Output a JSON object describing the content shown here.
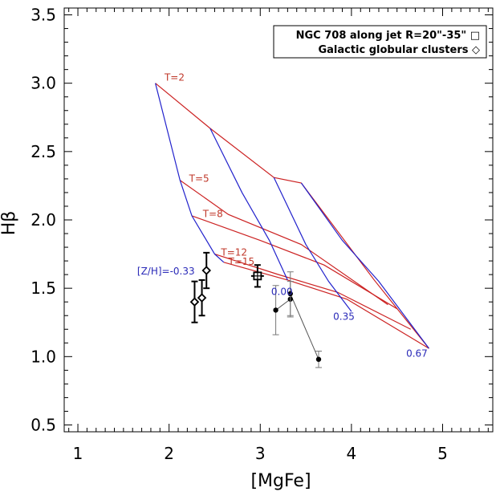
{
  "chart_data": {
    "type": "scatter",
    "xlabel": "[MgFe]",
    "ylabel": "Hβ",
    "xlim": [
      0.85,
      5.55
    ],
    "ylim": [
      0.45,
      3.55
    ],
    "x_ticks": [
      1,
      2,
      3,
      4,
      5
    ],
    "x_tick_labels": [
      "1",
      "2",
      "3",
      "4",
      "5"
    ],
    "y_ticks": [
      0.5,
      1.0,
      1.5,
      2.0,
      2.5,
      3.0,
      3.5
    ],
    "y_tick_labels": [
      "0.5",
      "1.0",
      "1.5",
      "2.0",
      "2.5",
      "3.0",
      "3.5"
    ],
    "legend": {
      "placement": "top-right",
      "entries": [
        {
          "text": "NGC 708 along jet R=20\"-35\" □"
        },
        {
          "text": "Galactic globular clusters ◇"
        }
      ]
    },
    "model_grid": {
      "age_lines": [
        {
          "label": "T=2",
          "color": "#cc2222",
          "points": [
            [
              1.85,
              3.0
            ],
            [
              2.45,
              2.67
            ],
            [
              3.15,
              2.31
            ],
            [
              3.45,
              2.27
            ],
            [
              4.25,
              1.56
            ],
            [
              4.85,
              1.06
            ]
          ]
        },
        {
          "label": "T=5",
          "color": "#cc2222",
          "points": [
            [
              2.12,
              2.29
            ],
            [
              2.65,
              2.04
            ],
            [
              3.45,
              1.82
            ],
            [
              4.4,
              1.38
            ]
          ]
        },
        {
          "label": "T=8",
          "color": "#cc2222",
          "points": [
            [
              2.25,
              2.03
            ],
            [
              3.0,
              1.85
            ],
            [
              3.7,
              1.67
            ],
            [
              4.5,
              1.35
            ]
          ]
        },
        {
          "label": "T=12",
          "color": "#cc2222",
          "points": [
            [
              2.5,
              1.75
            ],
            [
              3.2,
              1.6
            ],
            [
              3.85,
              1.47
            ],
            [
              4.65,
              1.2
            ]
          ]
        },
        {
          "label": "T=15",
          "color": "#cc2222",
          "points": [
            [
              2.6,
              1.69
            ],
            [
              3.3,
              1.56
            ],
            [
              3.95,
              1.42
            ],
            [
              4.85,
              1.06
            ]
          ]
        }
      ],
      "metallicity_lines": [
        {
          "label": "[Z/H]=-0.33",
          "color": "#2222cc",
          "points": [
            [
              1.85,
              3.0
            ],
            [
              2.12,
              2.29
            ],
            [
              2.25,
              2.03
            ],
            [
              2.5,
              1.75
            ],
            [
              2.6,
              1.69
            ]
          ]
        },
        {
          "label": "0.00",
          "color": "#2222cc",
          "points": [
            [
              2.45,
              2.67
            ],
            [
              2.8,
              2.2
            ],
            [
              3.1,
              1.85
            ],
            [
              3.3,
              1.56
            ]
          ]
        },
        {
          "label": "0.35",
          "color": "#2222cc",
          "points": [
            [
              3.15,
              2.31
            ],
            [
              3.5,
              1.82
            ],
            [
              3.75,
              1.55
            ],
            [
              4.0,
              1.33
            ]
          ]
        },
        {
          "label": "0.67",
          "color": "#2222cc",
          "points": [
            [
              3.45,
              2.27
            ],
            [
              3.9,
              1.85
            ],
            [
              4.3,
              1.55
            ],
            [
              4.85,
              1.06
            ]
          ]
        }
      ],
      "annotations": [
        {
          "text": "T=2",
          "x": 1.95,
          "y": 3.02,
          "color": "#cc2222"
        },
        {
          "text": "T=5",
          "x": 2.22,
          "y": 2.28,
          "color": "#cc2222"
        },
        {
          "text": "T=8",
          "x": 2.37,
          "y": 2.02,
          "color": "#cc2222"
        },
        {
          "text": "T=12",
          "x": 2.57,
          "y": 1.74,
          "color": "#cc2222"
        },
        {
          "text": "T=15",
          "x": 2.65,
          "y": 1.67,
          "color": "#cc2222"
        },
        {
          "text": "[Z/H]=-0.33",
          "x": 1.65,
          "y": 1.6,
          "color": "#2222cc"
        },
        {
          "text": "0.00",
          "x": 3.12,
          "y": 1.45,
          "color": "#2222cc"
        },
        {
          "text": "0.35",
          "x": 3.8,
          "y": 1.27,
          "color": "#2222cc"
        },
        {
          "text": "0.67",
          "x": 4.6,
          "y": 1.0,
          "color": "#2222cc"
        }
      ]
    },
    "series": [
      {
        "name": "NGC 708 along jet R=20\"-35\"",
        "marker": "square",
        "points": [
          {
            "x": 2.97,
            "y": 1.59,
            "yerr": 0.08,
            "xerr": 0.07
          }
        ]
      },
      {
        "name": "Galactic globular clusters",
        "marker": "diamond",
        "points": [
          {
            "x": 2.28,
            "y": 1.4,
            "yerr": 0.15
          },
          {
            "x": 2.36,
            "y": 1.43,
            "yerr": 0.13
          },
          {
            "x": 2.41,
            "y": 1.63,
            "yerr": 0.13
          }
        ]
      },
      {
        "marker": "filled-circle",
        "connected": true,
        "points": [
          {
            "x": 3.17,
            "y": 1.34,
            "yerr": 0.18
          },
          {
            "x": 3.33,
            "y": 1.42,
            "yerr": 0.13
          },
          {
            "x": 3.33,
            "y": 1.46,
            "yerr": 0.16
          },
          {
            "x": 3.64,
            "y": 0.98,
            "yerr": 0.06
          }
        ]
      }
    ]
  }
}
